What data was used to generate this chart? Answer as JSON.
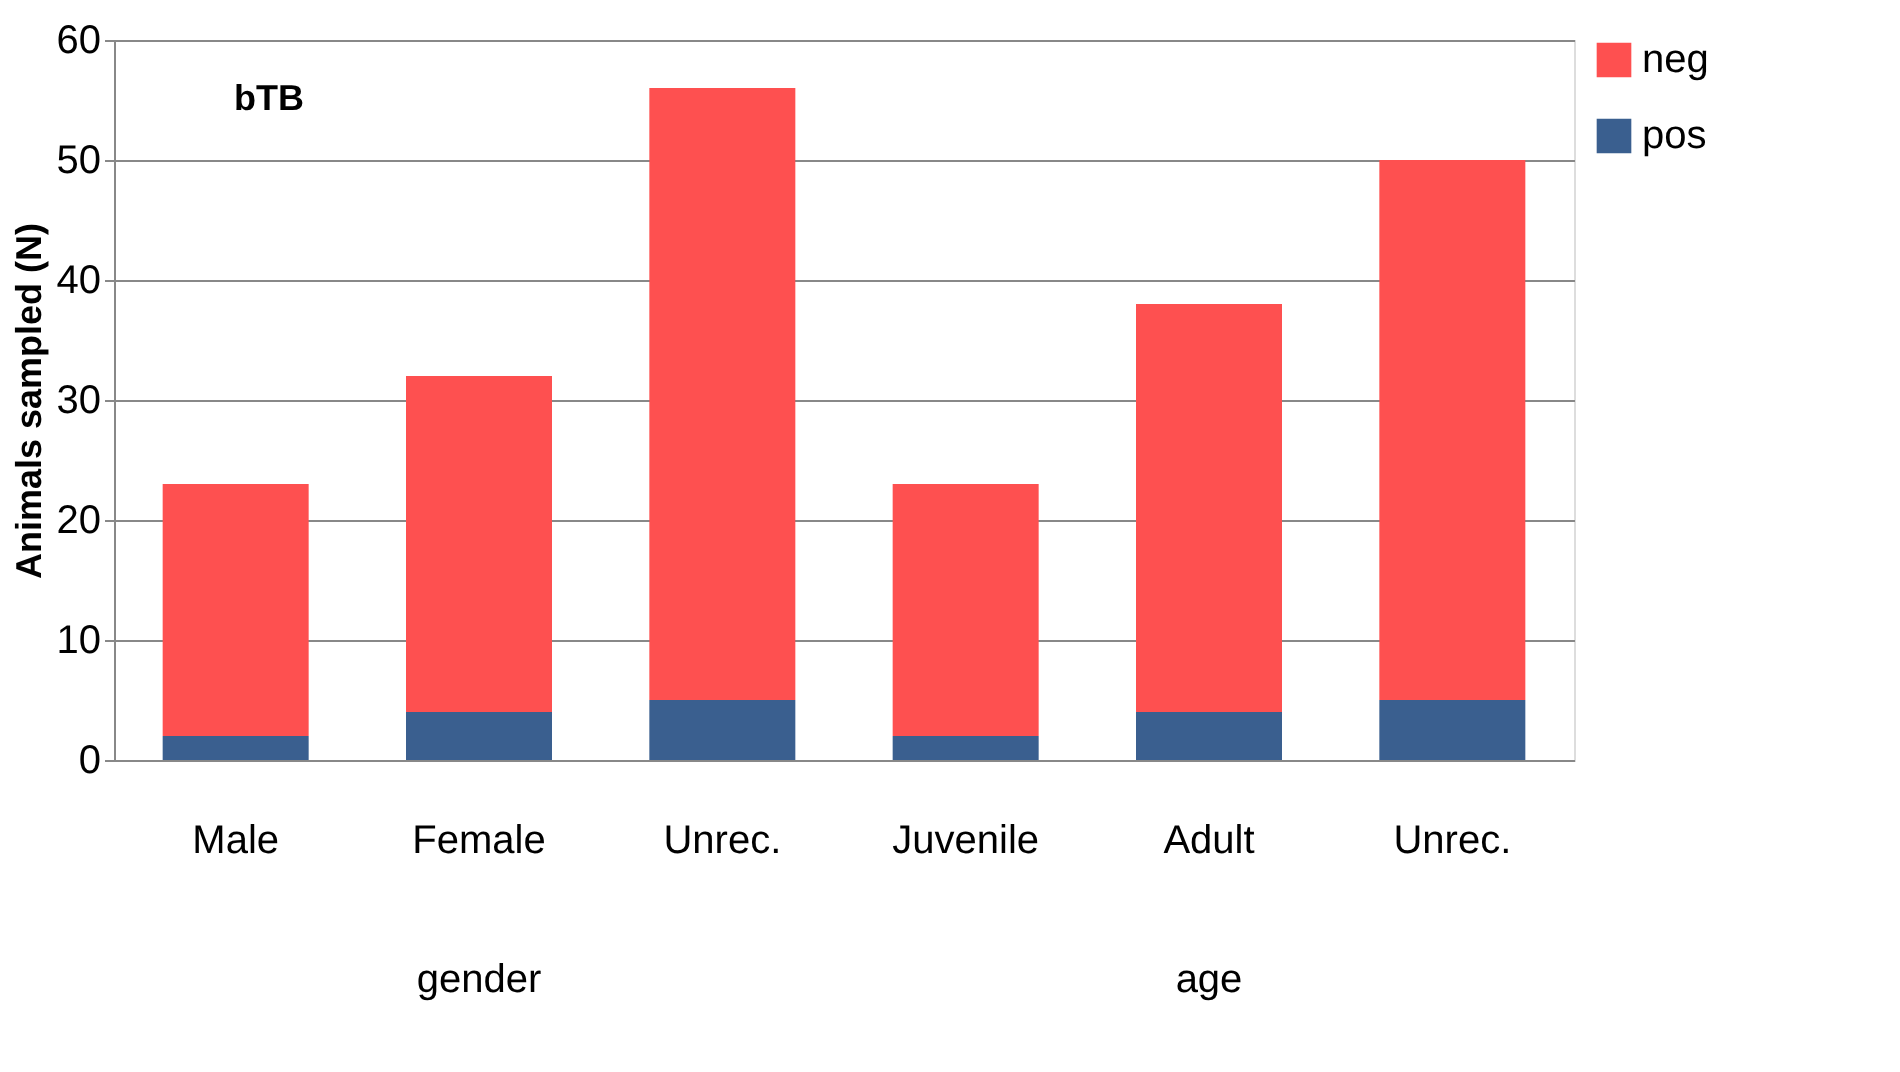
{
  "chart_data": {
    "type": "bar",
    "stacked": true,
    "ylabel": "Animals sampled (N)",
    "categories": [
      "Male",
      "Female",
      "Unrec.",
      "Juvenile",
      "Adult",
      "Unrec."
    ],
    "series": [
      {
        "name": "pos",
        "color": "#3a5f8f",
        "values": [
          2,
          4,
          5,
          2,
          4,
          5
        ]
      },
      {
        "name": "neg",
        "color": "#fe5050",
        "values": [
          21,
          28,
          51,
          21,
          34,
          45
        ]
      }
    ],
    "ylim": [
      0,
      60
    ],
    "yticks": [
      0,
      10,
      20,
      30,
      40,
      50,
      60
    ],
    "grid": "y",
    "legend": "right",
    "annotations": [
      "bTB",
      "gender",
      "age"
    ]
  }
}
